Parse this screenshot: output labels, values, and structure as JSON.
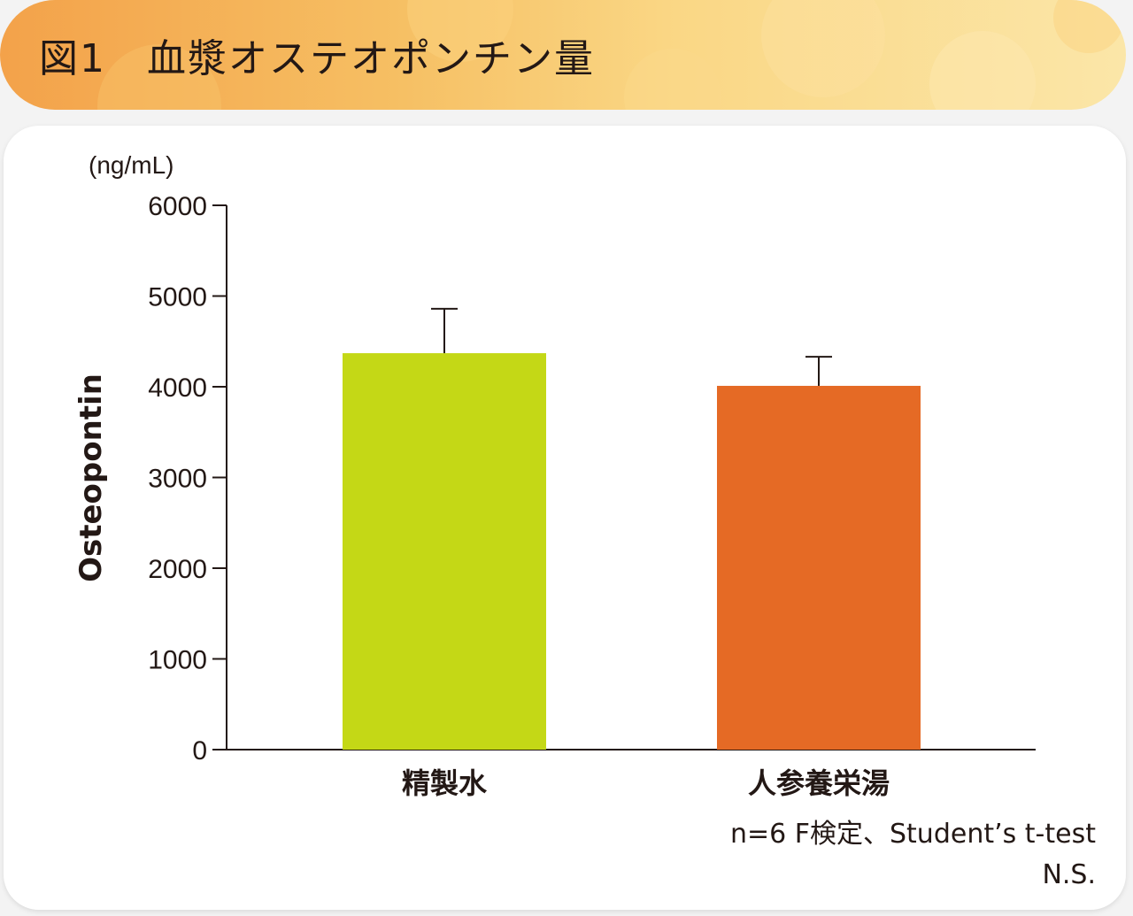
{
  "header": {
    "title": "図1　血漿オステオポンチン量"
  },
  "chart_data": {
    "type": "bar",
    "title": "図1　血漿オステオポンチン量",
    "ylabel": "Osteopontin",
    "yunit": "(ng/mL)",
    "xlabel": "",
    "categories": [
      "精製水",
      "人参養栄湯"
    ],
    "values": [
      4370,
      4010
    ],
    "error_bars": [
      490,
      320
    ],
    "colors": [
      "#c4d816",
      "#e56a25"
    ],
    "ylim": [
      0,
      6000
    ],
    "yticks": [
      0,
      1000,
      2000,
      3000,
      4000,
      5000,
      6000
    ],
    "ytick_labels": [
      "0",
      "1000",
      "2000",
      "3000",
      "4000",
      "5000",
      "6000"
    ],
    "grid": false,
    "notes": [
      "n=6 F検定、Student’s t-test",
      "N.S."
    ]
  }
}
